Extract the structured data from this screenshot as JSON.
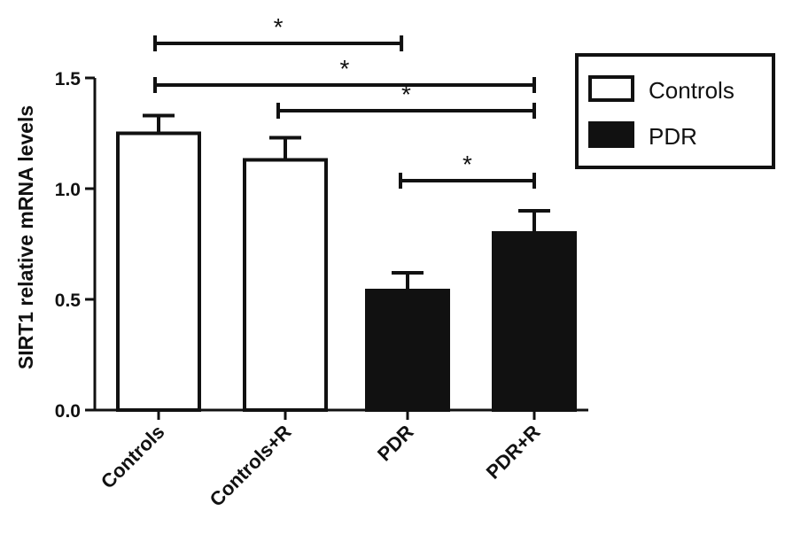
{
  "chart_data": {
    "type": "bar",
    "categories": [
      "Controls",
      "Controls+R",
      "PDR",
      "PDR+R"
    ],
    "values": [
      1.25,
      1.13,
      0.54,
      0.8
    ],
    "errors": [
      0.08,
      0.1,
      0.08,
      0.1
    ],
    "fill_groups": [
      "Controls",
      "Controls",
      "PDR",
      "PDR"
    ],
    "ylabel": "SIRT1 relative mRNA levels",
    "xlabel": "",
    "ylim": [
      0,
      1.5
    ],
    "yticks": [
      0.0,
      0.5,
      1.0,
      1.5
    ],
    "ytick_labels": [
      "0.0",
      "0.5",
      "1.0",
      "1.5"
    ],
    "legend": {
      "position": "top-right",
      "entries": [
        {
          "label": "Controls",
          "color": "#ffffff"
        },
        {
          "label": "PDR",
          "color": "#111111"
        }
      ]
    },
    "significance": [
      {
        "from": 0,
        "to": 1.95,
        "label": "*"
      },
      {
        "from": 0,
        "to": 3,
        "label": "*"
      },
      {
        "from": 1,
        "to": 3,
        "label": "*"
      },
      {
        "from": 2,
        "to": 3,
        "label": "*"
      }
    ],
    "grid": false,
    "colors": {
      "ink": "#111111",
      "paper": "#ffffff"
    }
  }
}
